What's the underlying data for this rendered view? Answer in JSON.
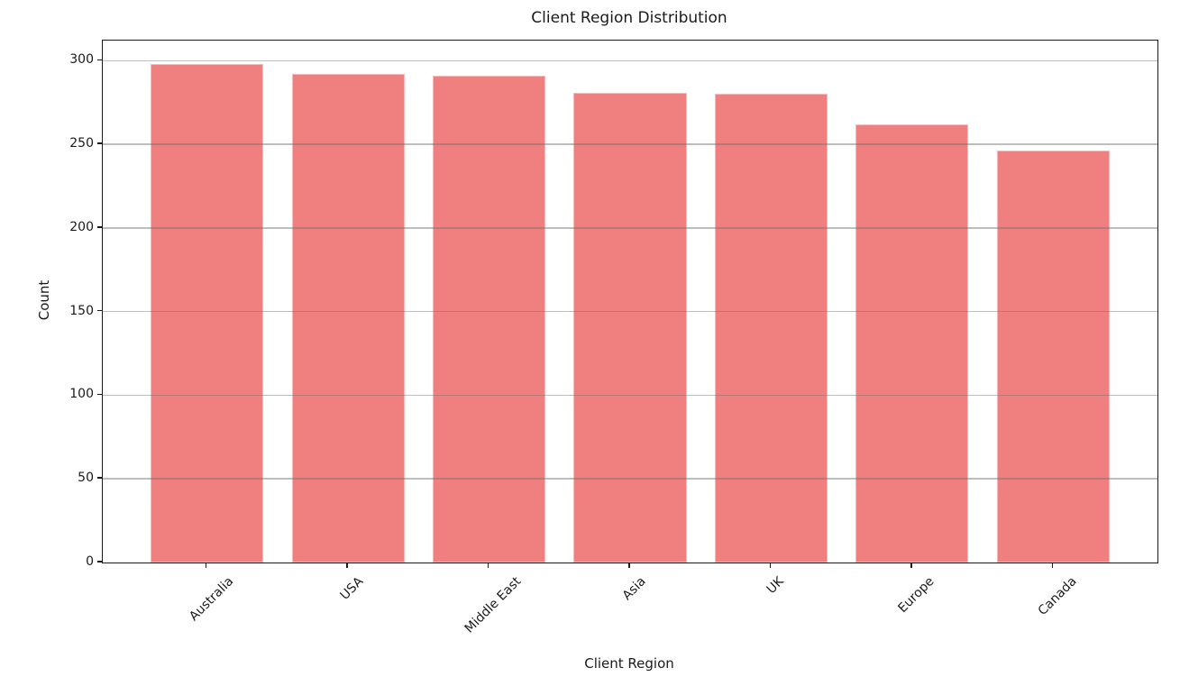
{
  "chart_data": {
    "type": "bar",
    "title": "Client Region Distribution",
    "xlabel": "Client Region",
    "ylabel": "Count",
    "categories": [
      "Australia",
      "USA",
      "Middle East",
      "Asia",
      "UK",
      "Europe",
      "Canada"
    ],
    "values": [
      298,
      292,
      291,
      281,
      280,
      262,
      246
    ],
    "yticks": [
      0,
      50,
      100,
      150,
      200,
      250,
      300
    ],
    "ylim": [
      0,
      312
    ],
    "grid": "horizontal-y",
    "legend_position": "none",
    "x_tick_rotation_deg": 45,
    "colors": {
      "bar": "#F08080",
      "grid": "#8C8C8C",
      "spine": "#1A1A1A",
      "text": "#1A1A1A",
      "background": "#FFFFFF"
    }
  }
}
